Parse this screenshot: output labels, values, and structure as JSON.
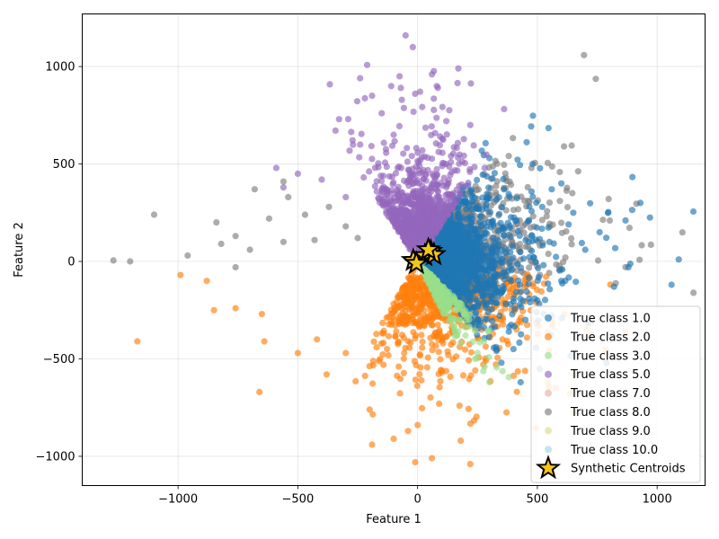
{
  "chart_data": {
    "type": "scatter",
    "title": "",
    "xlabel": "Feature 1",
    "ylabel": "Feature 2",
    "xlim": [
      -1400,
      1200
    ],
    "ylim": [
      -1150,
      1270
    ],
    "xticks": [
      -1000,
      -500,
      0,
      500,
      1000
    ],
    "yticks": [
      -1000,
      -500,
      0,
      500,
      1000
    ],
    "xtick_labels": [
      "−1000",
      "−500",
      "0",
      "500",
      "1000"
    ],
    "ytick_labels": [
      "−1000",
      "−500",
      "0",
      "500",
      "1000"
    ],
    "grid": true,
    "legend_position": "lower-right",
    "series": [
      {
        "name": "True class 1.0",
        "color": "#1f77b4",
        "shape": "circle",
        "angle_range": [
          -58,
          65
        ],
        "count": 1400,
        "median_radius": 210,
        "points": [
          [
            930,
            300
          ],
          [
            970,
            225
          ],
          [
            1090,
            10
          ],
          [
            1060,
            -120
          ],
          [
            880,
            -30
          ],
          [
            820,
            -130
          ],
          [
            760,
            150
          ],
          [
            630,
            190
          ],
          [
            600,
            400
          ],
          [
            560,
            370
          ],
          [
            520,
            280
          ],
          [
            480,
            500
          ],
          [
            430,
            -620
          ],
          [
            400,
            -450
          ],
          [
            350,
            -520
          ],
          [
            300,
            530
          ],
          [
            450,
            -300
          ],
          [
            700,
            60
          ],
          [
            650,
            250
          ],
          [
            550,
            100
          ],
          [
            500,
            -200
          ],
          [
            600,
            -100
          ]
        ]
      },
      {
        "name": "True class 2.0",
        "color": "#ff7f0e",
        "shape": "circle",
        "angle_range": [
          -115,
          -8
        ],
        "count": 900,
        "median_radius": 250,
        "points": [
          [
            -1170,
            -410
          ],
          [
            -990,
            -70
          ],
          [
            -880,
            -100
          ],
          [
            -850,
            -250
          ],
          [
            -760,
            -240
          ],
          [
            -650,
            -270
          ],
          [
            -640,
            -410
          ],
          [
            -660,
            -670
          ],
          [
            -500,
            -470
          ],
          [
            -380,
            -580
          ],
          [
            -190,
            -940
          ],
          [
            -100,
            -910
          ],
          [
            -10,
            -1030
          ],
          [
            60,
            -1010
          ],
          [
            180,
            -920
          ],
          [
            220,
            -1040
          ],
          [
            0,
            -840
          ],
          [
            90,
            -730
          ],
          [
            -200,
            -760
          ],
          [
            -40,
            -870
          ],
          [
            -300,
            -470
          ],
          [
            -420,
            -400
          ]
        ]
      },
      {
        "name": "True class 3.0",
        "color": "#98df8a",
        "shape": "circle",
        "angle_range": [
          -68,
          -50
        ],
        "count": 220,
        "median_radius": 180,
        "points": [
          [
            300,
            -620
          ],
          [
            280,
            -540
          ],
          [
            250,
            -470
          ],
          [
            200,
            -380
          ],
          [
            150,
            -300
          ],
          [
            120,
            -220
          ],
          [
            80,
            -160
          ],
          [
            240,
            -500
          ],
          [
            180,
            -420
          ],
          [
            60,
            -90
          ]
        ]
      },
      {
        "name": "True class 5.0",
        "color": "#9467bd",
        "shape": "circle",
        "angle_range": [
          62,
          118
        ],
        "count": 900,
        "median_radius": 250,
        "points": [
          [
            -50,
            1160
          ],
          [
            -20,
            1100
          ],
          [
            170,
            990
          ],
          [
            60,
            960
          ],
          [
            -240,
            940
          ],
          [
            -110,
            900
          ],
          [
            -70,
            890
          ],
          [
            -190,
            850
          ],
          [
            -10,
            860
          ],
          [
            80,
            900
          ],
          [
            -590,
            480
          ],
          [
            -500,
            450
          ],
          [
            -400,
            420
          ],
          [
            -560,
            380
          ],
          [
            -300,
            330
          ],
          [
            280,
            480
          ],
          [
            220,
            700
          ],
          [
            120,
            720
          ],
          [
            -290,
            730
          ],
          [
            -150,
            760
          ],
          [
            -240,
            600
          ],
          [
            -100,
            650
          ]
        ]
      },
      {
        "name": "True class 7.0",
        "color": "#e6b0a8",
        "shape": "circle",
        "angle_range": [
          0,
          0
        ],
        "count": 0,
        "median_radius": 0,
        "points": []
      },
      {
        "name": "True class 8.0",
        "color": "#7f7f7f",
        "shape": "circle",
        "angle_range": [
          -8,
          62
        ],
        "count": 600,
        "median_radius": 260,
        "points": [
          [
            -1270,
            5
          ],
          [
            -1200,
            0
          ],
          [
            -1100,
            240
          ],
          [
            -960,
            30
          ],
          [
            -840,
            200
          ],
          [
            -820,
            90
          ],
          [
            -760,
            130
          ],
          [
            -700,
            60
          ],
          [
            -680,
            370
          ],
          [
            -620,
            220
          ],
          [
            -560,
            410
          ],
          [
            -540,
            330
          ],
          [
            -470,
            240
          ],
          [
            -430,
            110
          ],
          [
            -370,
            280
          ],
          [
            -300,
            180
          ],
          [
            -250,
            120
          ],
          [
            -560,
            100
          ],
          [
            -760,
            -30
          ]
        ]
      },
      {
        "name": "True class 9.0",
        "color": "#dbdb8d",
        "shape": "circle",
        "angle_range": [
          0,
          0
        ],
        "count": 0,
        "median_radius": 0,
        "points": []
      },
      {
        "name": "True class 10.0",
        "color": "#9edae5",
        "shape": "circle",
        "angle_range": [
          0,
          0
        ],
        "count": 0,
        "median_radius": 0,
        "points": []
      },
      {
        "name": "Synthetic Centroids",
        "color": "#f5c518",
        "edge_color": "#000000",
        "shape": "star",
        "points": [
          [
            -18,
            5
          ],
          [
            30,
            30
          ],
          [
            55,
            52
          ],
          [
            68,
            35
          ],
          [
            -5,
            -10
          ],
          [
            45,
            60
          ]
        ]
      }
    ]
  }
}
